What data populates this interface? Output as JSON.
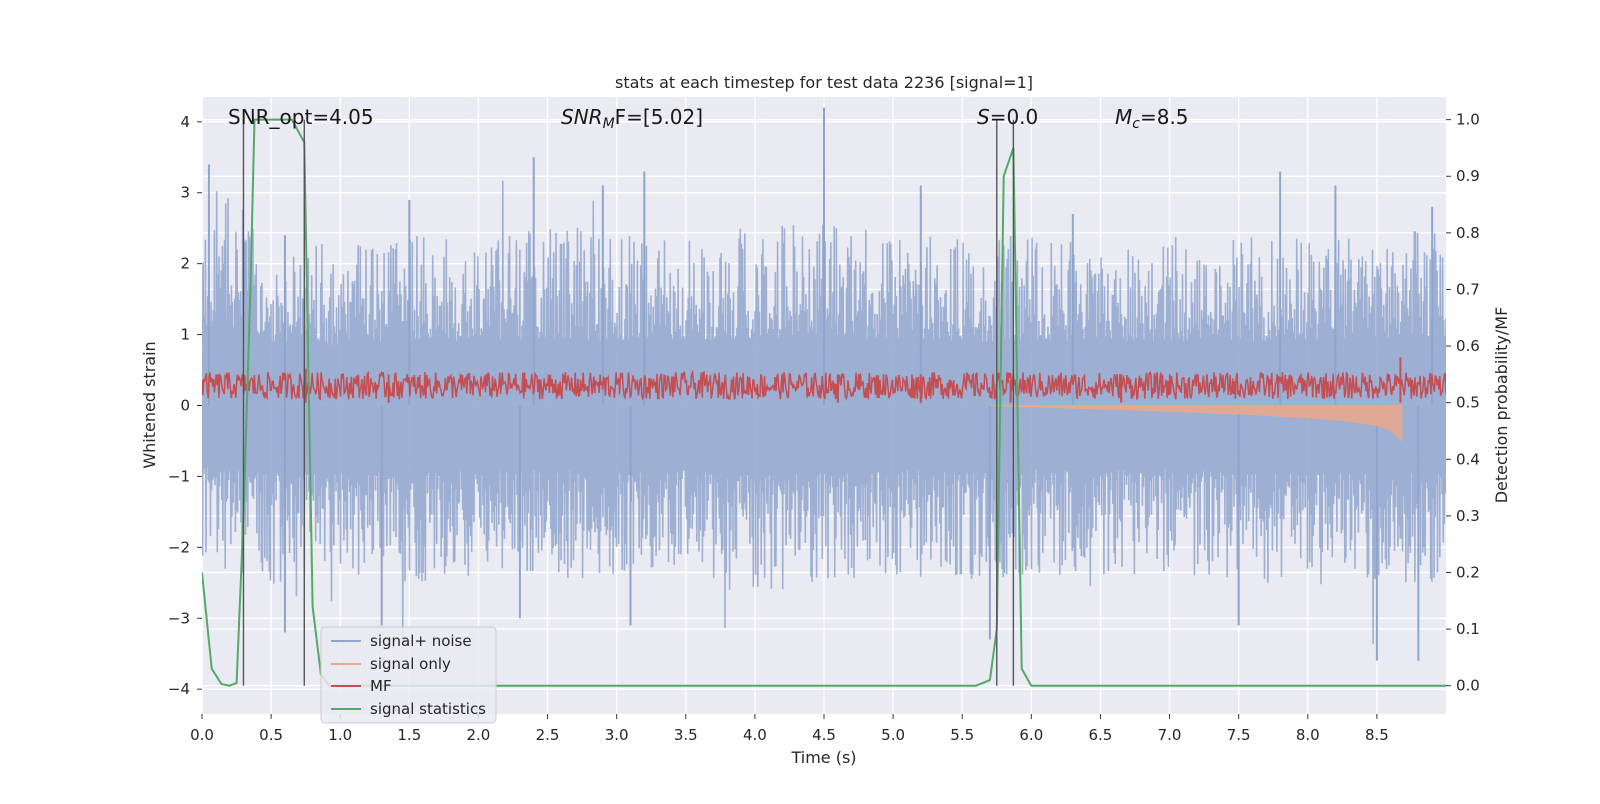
{
  "chart_data": {
    "type": "line",
    "title": "stats at each timestep for test data 2236 [signal=1]",
    "xlabel": "Time (s)",
    "ylabel_left": "Whitened strain",
    "ylabel_right": "Detection probability/MF",
    "xlim": [
      0,
      9
    ],
    "ylim_left": [
      -4.35,
      4.35
    ],
    "ylim_right": [
      -0.05,
      1.04
    ],
    "x_ticks": [
      "0.0",
      "0.5",
      "1.0",
      "1.5",
      "2.0",
      "2.5",
      "3.0",
      "3.5",
      "4.0",
      "4.5",
      "5.0",
      "5.5",
      "6.0",
      "6.5",
      "7.0",
      "7.5",
      "8.0",
      "8.5"
    ],
    "y_ticks_left": [
      "−4",
      "−3",
      "−2",
      "−1",
      "0",
      "1",
      "2",
      "3",
      "4"
    ],
    "y_ticks_right": [
      "0.0",
      "0.1",
      "0.2",
      "0.3",
      "0.4",
      "0.5",
      "0.6",
      "0.7",
      "0.8",
      "0.9",
      "1.0"
    ],
    "grid": true,
    "legend_position": "lower-left",
    "annotations": {
      "snr_opt": "SNR_opt=4.05",
      "snr_mf_sym": "SNR",
      "snr_mf_sub": "M",
      "snr_mf_rest": "F=[5.02]",
      "s_sym": "S",
      "s_rest": "=0.0",
      "mc_sym": "M",
      "mc_sub": "c",
      "mc_rest": "=8.5"
    },
    "vertical_lines_x": [
      0.3,
      0.74,
      5.75,
      5.87
    ],
    "series": [
      {
        "name": "signal+ noise",
        "color": "#8fa4cc",
        "description_axis": "left",
        "envelope_upper": [
          [
            0.0,
            2.2
          ],
          [
            0.1,
            2.6
          ],
          [
            0.5,
            2.0
          ],
          [
            1.0,
            1.9
          ],
          [
            1.5,
            2.0
          ],
          [
            2.0,
            2.0
          ],
          [
            2.5,
            2.1
          ],
          [
            3.0,
            2.0
          ],
          [
            3.5,
            2.0
          ],
          [
            4.0,
            2.1
          ],
          [
            4.5,
            2.2
          ],
          [
            5.0,
            2.0
          ],
          [
            5.5,
            2.0
          ],
          [
            6.0,
            2.0
          ],
          [
            6.5,
            2.0
          ],
          [
            7.0,
            2.0
          ],
          [
            7.5,
            2.0
          ],
          [
            8.0,
            2.0
          ],
          [
            8.5,
            2.1
          ],
          [
            9.0,
            2.1
          ]
        ],
        "envelope_lower": [
          [
            0.0,
            -1.9
          ],
          [
            0.5,
            -2.1
          ],
          [
            1.0,
            -2.0
          ],
          [
            1.5,
            -2.1
          ],
          [
            2.0,
            -2.0
          ],
          [
            2.5,
            -2.0
          ],
          [
            3.0,
            -2.1
          ],
          [
            3.5,
            -2.0
          ],
          [
            4.0,
            -2.2
          ],
          [
            4.5,
            -2.1
          ],
          [
            5.0,
            -2.0
          ],
          [
            5.5,
            -2.1
          ],
          [
            6.0,
            -2.0
          ],
          [
            6.5,
            -2.0
          ],
          [
            7.0,
            -2.0
          ],
          [
            7.5,
            -2.1
          ],
          [
            8.0,
            -2.1
          ],
          [
            8.5,
            -2.1
          ],
          [
            9.0,
            -2.1
          ]
        ],
        "peaks": [
          [
            0.05,
            3.4
          ],
          [
            0.6,
            2.4
          ],
          [
            1.5,
            2.9
          ],
          [
            2.4,
            3.5
          ],
          [
            2.9,
            3.1
          ],
          [
            3.2,
            3.3
          ],
          [
            4.5,
            4.2
          ],
          [
            5.2,
            3.1
          ],
          [
            6.3,
            2.7
          ],
          [
            7.8,
            3.3
          ],
          [
            8.2,
            3.1
          ],
          [
            8.9,
            2.8
          ],
          [
            0.6,
            -3.2
          ],
          [
            1.3,
            -3.1
          ],
          [
            2.3,
            -3.0
          ],
          [
            3.1,
            -3.1
          ],
          [
            5.7,
            -3.3
          ],
          [
            7.5,
            -3.1
          ],
          [
            8.5,
            -3.6
          ],
          [
            8.8,
            -3.6
          ]
        ]
      },
      {
        "name": "signal only",
        "color": "#e8a88f",
        "description_axis": "left",
        "points": [
          [
            5.7,
            0.0
          ],
          [
            6.5,
            -0.05
          ],
          [
            7.0,
            -0.08
          ],
          [
            7.5,
            -0.12
          ],
          [
            8.0,
            -0.17
          ],
          [
            8.3,
            -0.22
          ],
          [
            8.5,
            -0.28
          ],
          [
            8.6,
            -0.35
          ],
          [
            8.68,
            -0.5
          ],
          [
            8.68,
            0.0
          ]
        ]
      },
      {
        "name": "MF",
        "color": "#c44e52",
        "description_axis": "right",
        "mean": 0.53,
        "peaks": [
          [
            0.75,
            0.56
          ],
          [
            1.35,
            0.55
          ],
          [
            4.6,
            0.55
          ],
          [
            5.2,
            0.55
          ],
          [
            5.85,
            0.54
          ],
          [
            6.65,
            0.55
          ],
          [
            8.67,
            0.58
          ]
        ]
      },
      {
        "name": "signal statistics",
        "color": "#55a868",
        "description_axis": "right",
        "points": [
          [
            0.0,
            0.2
          ],
          [
            0.07,
            0.03
          ],
          [
            0.14,
            0.003
          ],
          [
            0.2,
            0.0
          ],
          [
            0.25,
            0.005
          ],
          [
            0.3,
            0.3
          ],
          [
            0.35,
            0.7
          ],
          [
            0.38,
            1.0
          ],
          [
            0.45,
            1.0
          ],
          [
            0.55,
            1.0
          ],
          [
            0.65,
            1.0
          ],
          [
            0.74,
            0.96
          ],
          [
            0.8,
            0.14
          ],
          [
            0.86,
            0.02
          ],
          [
            0.92,
            0.0
          ],
          [
            5.6,
            0.0
          ],
          [
            5.7,
            0.01
          ],
          [
            5.75,
            0.1
          ],
          [
            5.8,
            0.9
          ],
          [
            5.87,
            0.95
          ],
          [
            5.93,
            0.03
          ],
          [
            6.0,
            0.0
          ],
          [
            9.0,
            0.0
          ]
        ]
      }
    ]
  }
}
